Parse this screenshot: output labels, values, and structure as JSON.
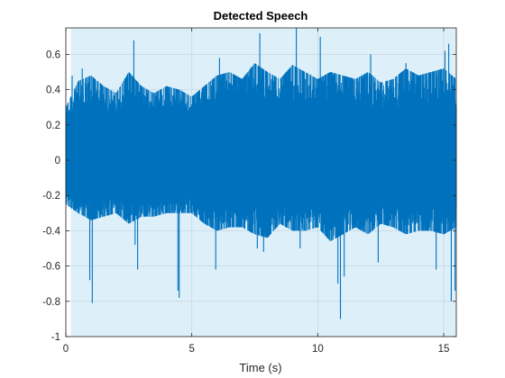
{
  "chart_data": {
    "type": "line",
    "title": "Detected Speech",
    "xlabel": "Time (s)",
    "ylabel": "",
    "xlim": [
      0,
      15.5
    ],
    "ylim": [
      -1,
      0.75
    ],
    "x_ticks": [
      0,
      5,
      10,
      15
    ],
    "x_tick_labels": [
      "0",
      "5",
      "10",
      "15"
    ],
    "y_ticks": [
      -1,
      -0.8,
      -0.6,
      -0.4,
      -0.2,
      0,
      0.2,
      0.4,
      0.6
    ],
    "y_tick_labels": [
      "-1",
      "-0.8",
      "-0.6",
      "-0.4",
      "-0.2",
      "0",
      "0.2",
      "0.4",
      "0.6"
    ],
    "grid": true,
    "legend": "none",
    "colors": {
      "signal": "#0072BD",
      "detected_region": "#DDF0FA",
      "axis": "#262626",
      "grid": "#C8D6DE"
    },
    "detected_regions": [
      [
        0.2,
        15.5
      ]
    ],
    "series": [
      {
        "values_description_envelope": [
          {
            "x": 0.0,
            "max": 0.3,
            "min": -0.25
          },
          {
            "x": 0.5,
            "max": 0.45,
            "min": -0.3
          },
          {
            "x": 1.0,
            "max": 0.48,
            "min": -0.34
          },
          {
            "x": 1.5,
            "max": 0.42,
            "min": -0.32
          },
          {
            "x": 2.0,
            "max": 0.38,
            "min": -0.3
          },
          {
            "x": 2.5,
            "max": 0.5,
            "min": -0.36
          },
          {
            "x": 3.0,
            "max": 0.42,
            "min": -0.32
          },
          {
            "x": 3.5,
            "max": 0.38,
            "min": -0.32
          },
          {
            "x": 4.0,
            "max": 0.42,
            "min": -0.3
          },
          {
            "x": 4.5,
            "max": 0.4,
            "min": -0.3
          },
          {
            "x": 5.0,
            "max": 0.36,
            "min": -0.3
          },
          {
            "x": 5.5,
            "max": 0.42,
            "min": -0.36
          },
          {
            "x": 6.0,
            "max": 0.48,
            "min": -0.4
          },
          {
            "x": 6.5,
            "max": 0.5,
            "min": -0.38
          },
          {
            "x": 7.0,
            "max": 0.46,
            "min": -0.38
          },
          {
            "x": 7.5,
            "max": 0.55,
            "min": -0.42
          },
          {
            "x": 8.0,
            "max": 0.5,
            "min": -0.44
          },
          {
            "x": 8.5,
            "max": 0.46,
            "min": -0.36
          },
          {
            "x": 9.0,
            "max": 0.54,
            "min": -0.4
          },
          {
            "x": 9.5,
            "max": 0.5,
            "min": -0.4
          },
          {
            "x": 10.0,
            "max": 0.46,
            "min": -0.38
          },
          {
            "x": 10.5,
            "max": 0.5,
            "min": -0.46
          },
          {
            "x": 11.0,
            "max": 0.48,
            "min": -0.42
          },
          {
            "x": 11.5,
            "max": 0.46,
            "min": -0.38
          },
          {
            "x": 12.0,
            "max": 0.5,
            "min": -0.42
          },
          {
            "x": 12.5,
            "max": 0.44,
            "min": -0.36
          },
          {
            "x": 13.0,
            "max": 0.46,
            "min": -0.38
          },
          {
            "x": 13.5,
            "max": 0.52,
            "min": -0.42
          },
          {
            "x": 14.0,
            "max": 0.48,
            "min": -0.4
          },
          {
            "x": 14.5,
            "max": 0.5,
            "min": -0.4
          },
          {
            "x": 15.0,
            "max": 0.52,
            "min": -0.42
          },
          {
            "x": 15.5,
            "max": 0.46,
            "min": -0.38
          }
        ],
        "spikes": [
          {
            "x": 0.25,
            "y": 0.48
          },
          {
            "x": 0.65,
            "y": 0.52
          },
          {
            "x": 0.95,
            "y": -0.68
          },
          {
            "x": 1.05,
            "y": -0.81
          },
          {
            "x": 2.7,
            "y": 0.68
          },
          {
            "x": 2.75,
            "y": -0.48
          },
          {
            "x": 2.85,
            "y": -0.62
          },
          {
            "x": 4.45,
            "y": -0.74
          },
          {
            "x": 4.5,
            "y": -0.78
          },
          {
            "x": 5.95,
            "y": -0.62
          },
          {
            "x": 6.1,
            "y": 0.58
          },
          {
            "x": 7.6,
            "y": -0.5
          },
          {
            "x": 7.7,
            "y": 0.72
          },
          {
            "x": 7.85,
            "y": -0.52
          },
          {
            "x": 9.15,
            "y": 0.75
          },
          {
            "x": 9.3,
            "y": -0.5
          },
          {
            "x": 10.1,
            "y": 0.7
          },
          {
            "x": 10.8,
            "y": -0.7
          },
          {
            "x": 10.9,
            "y": -0.9
          },
          {
            "x": 11.05,
            "y": -0.66
          },
          {
            "x": 12.1,
            "y": 0.6
          },
          {
            "x": 12.4,
            "y": -0.58
          },
          {
            "x": 13.5,
            "y": 0.55
          },
          {
            "x": 14.7,
            "y": -0.62
          },
          {
            "x": 15.05,
            "y": 0.62
          },
          {
            "x": 15.2,
            "y": 0.66
          },
          {
            "x": 15.3,
            "y": -0.8
          },
          {
            "x": 15.45,
            "y": -0.74
          }
        ]
      }
    ]
  }
}
